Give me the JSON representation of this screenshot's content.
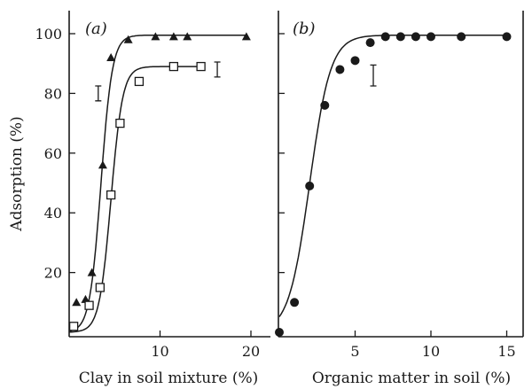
{
  "chart_data": [
    {
      "panel_label": "(a)",
      "type": "scatter",
      "ylabel": "Adsorption (%)",
      "xlabel": "Clay in soil mixture (%)",
      "x_ticks": [
        10,
        20
      ],
      "y_ticks": [
        20,
        40,
        60,
        80,
        100
      ],
      "xlim": [
        0,
        20
      ],
      "ylim": [
        0,
        105
      ],
      "grid": false,
      "series": [
        {
          "marker": "filled-triangle",
          "x": [
            0.8,
            1.8,
            2.5,
            3.7,
            4.6,
            6.5,
            9.5,
            11.5,
            13.0,
            19.5
          ],
          "y": [
            10,
            11,
            20,
            56,
            92,
            98,
            99,
            99,
            99,
            99
          ]
        },
        {
          "marker": "open-square",
          "x": [
            0.5,
            2.2,
            3.4,
            4.6,
            5.6,
            7.7,
            11.5,
            14.5
          ],
          "y": [
            2,
            9,
            15,
            46,
            70,
            84,
            89,
            89
          ]
        }
      ],
      "error_bars": [
        {
          "x": 3.2,
          "y": 80,
          "half_range": 2.5
        },
        {
          "x": 16.3,
          "y": 88,
          "half_range": 2.5
        }
      ]
    },
    {
      "panel_label": "(b)",
      "type": "scatter",
      "ylabel": "",
      "xlabel": "Organic matter in soil (%)",
      "x_ticks": [
        5,
        10,
        15
      ],
      "y_ticks": [
        20,
        40,
        60,
        80,
        100
      ],
      "xlim": [
        0,
        16
      ],
      "ylim": [
        0,
        105
      ],
      "grid": false,
      "series": [
        {
          "marker": "filled-circle",
          "x": [
            0.0,
            1.0,
            2.0,
            3.0,
            4.0,
            5.0,
            6.0,
            7.0,
            8.0,
            9.0,
            10.0,
            12.0,
            15.0
          ],
          "y": [
            0,
            10,
            49,
            76,
            88,
            91,
            97,
            99,
            99,
            99,
            99,
            99,
            99
          ]
        }
      ],
      "error_bars": [
        {
          "x": 6.2,
          "y": 86,
          "half_range": 3.5
        }
      ]
    }
  ]
}
